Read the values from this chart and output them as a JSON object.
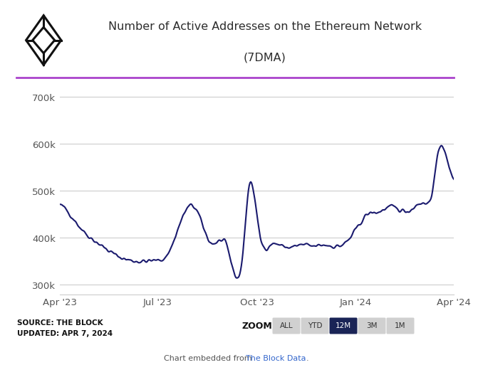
{
  "title_line1": "Number of Active Addresses on the Ethereum Network",
  "title_line2": "(7DMA)",
  "title_color": "#2d2d2d",
  "line_color": "#1a1a6e",
  "line_width": 1.5,
  "ylim": [
    280000,
    730000
  ],
  "yticks": [
    300000,
    400000,
    500000,
    600000,
    700000
  ],
  "ytick_labels": [
    "300k",
    "400k",
    "500k",
    "600k",
    "700k"
  ],
  "xtick_labels": [
    "Apr '23",
    "Jul '23",
    "Oct '23",
    "Jan '24",
    "Apr '24"
  ],
  "bg_color": "#ffffff",
  "grid_color": "#cccccc",
  "separator_color": "#aa44cc",
  "source_text_line1": "SOURCE: THE BLOCK",
  "source_text_line2": "UPDATED: APR 7, 2024",
  "zoom_label": "ZOOM",
  "zoom_buttons": [
    "ALL",
    "YTD",
    "12M",
    "3M",
    "1M"
  ],
  "active_button": "12M",
  "active_button_color": "#1a2456",
  "active_button_text_color": "#ffffff",
  "inactive_button_color": "#d0d0d0",
  "inactive_button_text_color": "#333333",
  "keypoints_x": [
    0,
    10,
    20,
    35,
    55,
    75,
    90,
    100,
    115,
    125,
    140,
    155,
    170,
    175,
    185,
    195,
    210,
    225,
    235,
    245,
    255,
    265,
    275,
    285,
    295,
    305,
    315,
    325,
    335,
    345,
    353,
    358,
    362,
    365
  ],
  "keypoints_y": [
    470,
    450,
    420,
    390,
    360,
    350,
    352,
    365,
    450,
    465,
    390,
    380,
    375,
    505,
    410,
    385,
    380,
    385,
    382,
    385,
    382,
    390,
    420,
    450,
    455,
    465,
    460,
    460,
    475,
    500,
    600,
    570,
    540,
    530
  ]
}
